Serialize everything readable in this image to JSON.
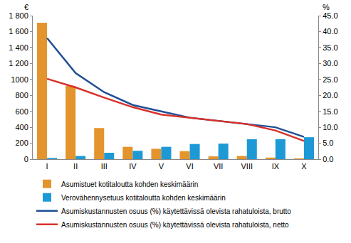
{
  "chart_data": {
    "type": "bar",
    "categories": [
      "I",
      "II",
      "III",
      "IV",
      "V",
      "VI",
      "VII",
      "VIII",
      "IX",
      "X"
    ],
    "series": [
      {
        "name": "Asumistuet kotitaloutta kohden keskimäärin",
        "type": "bar",
        "color": "#e3942c",
        "values": [
          1710,
          920,
          390,
          155,
          130,
          100,
          35,
          40,
          20,
          10
        ]
      },
      {
        "name": "Verovähennysetuus kotitaloutta kohden keskimäärin",
        "type": "bar",
        "color": "#1d9ad6",
        "values": [
          15,
          40,
          80,
          105,
          155,
          190,
          195,
          250,
          250,
          275
        ]
      },
      {
        "name": "Asumiskustannusten osuus (%) käytettävissä olevista rahatuloista, brutto",
        "type": "line",
        "axis": "y2",
        "color": "#1f4e96",
        "marker": "none",
        "line_style": "solid",
        "values": [
          38,
          27,
          21,
          17,
          15,
          13,
          12,
          11,
          10,
          7
        ]
      },
      {
        "name": "Asumiskustannusten osuus (%) käytettävissä olevista rahatuloista, netto",
        "type": "line",
        "axis": "y2",
        "color": "#d8312a",
        "marker": "none",
        "line_style": "solid",
        "values": [
          25.2,
          22.5,
          19.3,
          16.3,
          14,
          13,
          12,
          11,
          9,
          5.7
        ]
      }
    ],
    "ylabel": "€",
    "y2label": "%",
    "ylim": [
      0,
      1800
    ],
    "yticks": [
      0,
      200,
      400,
      600,
      800,
      1000,
      {
        "value": 1200,
        "label": "1 200"
      },
      {
        "value": 1400,
        "label": "1 400"
      },
      {
        "value": 1600,
        "label": "1 600"
      },
      {
        "value": 1800,
        "label": "1 800"
      }
    ],
    "y2lim": [
      0,
      45
    ],
    "y2ticks": [
      {
        "value": 0,
        "label": "0.0"
      },
      {
        "value": 5,
        "label": "5.0"
      },
      {
        "value": 10,
        "label": "10.0"
      },
      {
        "value": 15,
        "label": "15.0"
      },
      {
        "value": 20,
        "label": "20.0"
      },
      {
        "value": 25,
        "label": "25.0"
      },
      {
        "value": 30,
        "label": "30.0"
      },
      {
        "value": 35,
        "label": "35.0"
      },
      {
        "value": 40,
        "label": "40.0"
      },
      {
        "value": 45,
        "label": "45.0"
      }
    ],
    "grid": false,
    "legend": "bottom"
  }
}
